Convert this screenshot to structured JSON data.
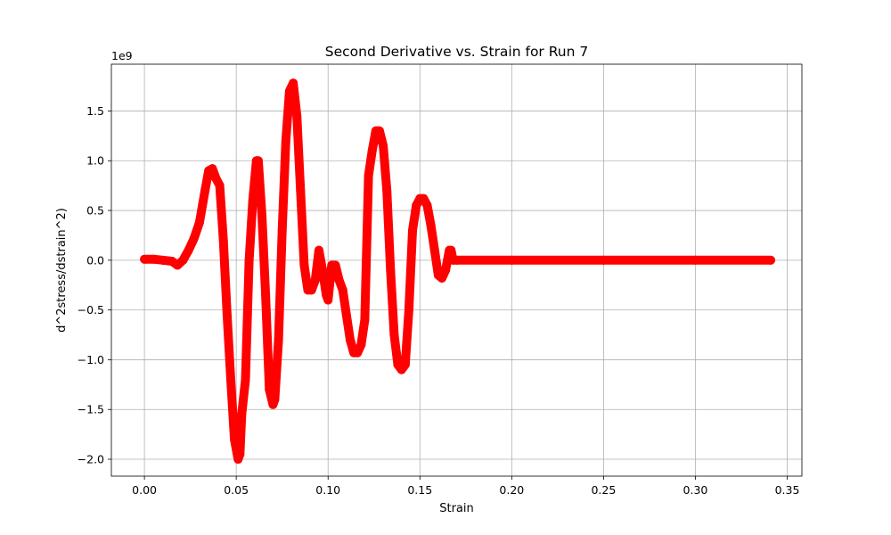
{
  "chart_data": {
    "type": "scatter",
    "title": "Second Derivative vs. Strain for Run 7",
    "xlabel": "Strain",
    "ylabel": "d^2stress/dstrain^2)",
    "y_offset_text": "1e9",
    "y_scale": 1000000000,
    "xlim": [
      -0.018,
      0.358
    ],
    "ylim": [
      -2.17,
      1.97
    ],
    "xticks": [
      0.0,
      0.05,
      0.1,
      0.15,
      0.2,
      0.25,
      0.3,
      0.35
    ],
    "xtick_labels": [
      "0.00",
      "0.05",
      "0.10",
      "0.15",
      "0.20",
      "0.25",
      "0.30",
      "0.35"
    ],
    "yticks": [
      -2.0,
      -1.5,
      -1.0,
      -0.5,
      0.0,
      0.5,
      1.0,
      1.5
    ],
    "ytick_labels": [
      "−2.0",
      "−1.5",
      "−1.0",
      "−0.5",
      "0.0",
      "0.5",
      "1.0",
      "1.5"
    ],
    "grid": true,
    "marker_color": "#ff0000",
    "series": [
      {
        "x": [
          0.0,
          0.005,
          0.01,
          0.015,
          0.018,
          0.021,
          0.024,
          0.027,
          0.03,
          0.033,
          0.035,
          0.037,
          0.039,
          0.041,
          0.043,
          0.045,
          0.047,
          0.049,
          0.051,
          0.052,
          0.053,
          0.055,
          0.057,
          0.059,
          0.061,
          0.062,
          0.064,
          0.066,
          0.068,
          0.07,
          0.071,
          0.073,
          0.075,
          0.077,
          0.079,
          0.081,
          0.083,
          0.085,
          0.087,
          0.089,
          0.091,
          0.093,
          0.095,
          0.097,
          0.099,
          0.1,
          0.102,
          0.104,
          0.106,
          0.108,
          0.11,
          0.112,
          0.114,
          0.116,
          0.118,
          0.12,
          0.122,
          0.124,
          0.126,
          0.128,
          0.13,
          0.132,
          0.134,
          0.136,
          0.138,
          0.14,
          0.142,
          0.144,
          0.146,
          0.148,
          0.15,
          0.152,
          0.154,
          0.156,
          0.158,
          0.16,
          0.162,
          0.164,
          0.165,
          0.166,
          0.167,
          0.168,
          0.17,
          0.2,
          0.25,
          0.3,
          0.341
        ],
        "y": [
          0.01,
          0.01,
          0.0,
          -0.01,
          -0.05,
          0.0,
          0.1,
          0.22,
          0.38,
          0.7,
          0.9,
          0.92,
          0.82,
          0.75,
          0.2,
          -0.55,
          -1.2,
          -1.8,
          -2.0,
          -1.95,
          -1.55,
          -1.2,
          0.0,
          0.6,
          1.0,
          1.0,
          0.45,
          -0.35,
          -1.3,
          -1.45,
          -1.4,
          -0.8,
          0.3,
          1.2,
          1.7,
          1.78,
          1.45,
          0.7,
          -0.05,
          -0.3,
          -0.3,
          -0.2,
          0.1,
          -0.1,
          -0.35,
          -0.4,
          -0.05,
          -0.05,
          -0.2,
          -0.3,
          -0.55,
          -0.8,
          -0.93,
          -0.93,
          -0.85,
          -0.6,
          0.85,
          1.1,
          1.3,
          1.3,
          1.15,
          0.7,
          -0.1,
          -0.75,
          -1.05,
          -1.1,
          -1.05,
          -0.5,
          0.3,
          0.55,
          0.62,
          0.62,
          0.55,
          0.35,
          0.1,
          -0.15,
          -0.18,
          -0.1,
          0.0,
          0.1,
          0.1,
          0.0,
          0.0,
          0.0,
          0.0,
          0.0,
          0.0
        ]
      }
    ]
  }
}
